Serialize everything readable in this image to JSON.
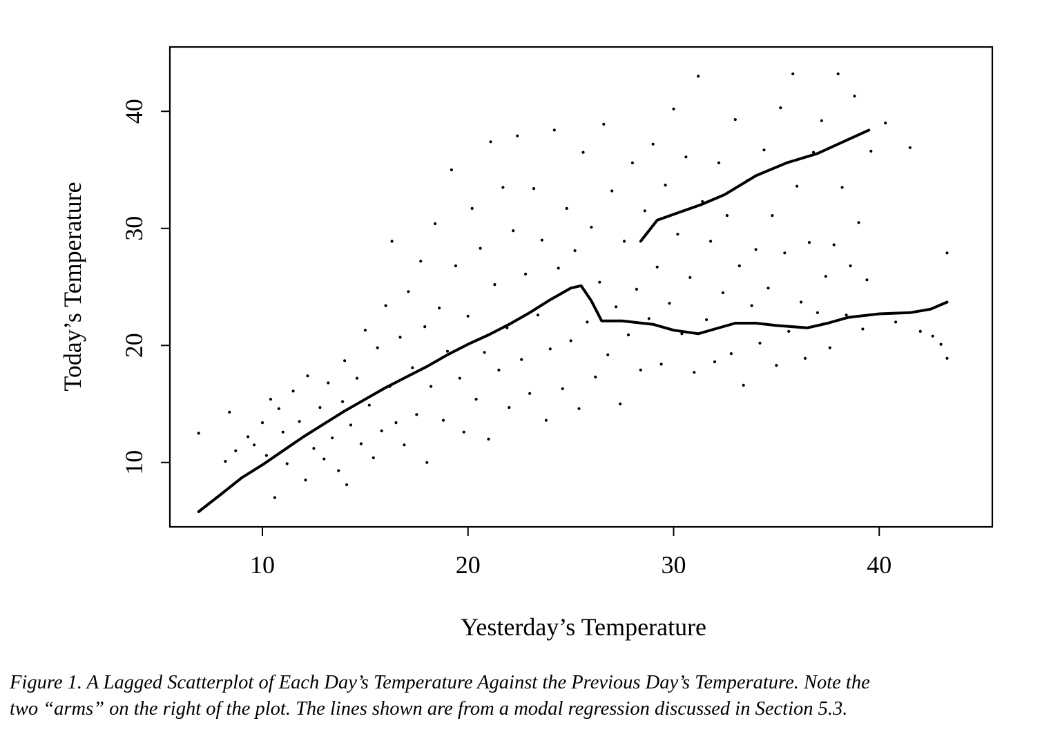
{
  "chart_data": {
    "type": "scatter",
    "title": "",
    "xlabel": "Yesterday’s Temperature",
    "ylabel": "Today’s Temperature",
    "xlim": [
      5.5,
      45.5
    ],
    "ylim": [
      4.5,
      45.5
    ],
    "x_ticks": [
      10,
      20,
      30,
      40
    ],
    "y_ticks": [
      10,
      20,
      30,
      40
    ],
    "grid": false,
    "legend": "none",
    "point_color": "#000000",
    "line_color": "#000000",
    "lines": [
      {
        "points": [
          [
            6.9,
            5.8
          ],
          [
            8,
            7.3
          ],
          [
            9,
            8.7
          ],
          [
            10,
            9.8
          ],
          [
            11,
            11
          ],
          [
            12,
            12.2
          ],
          [
            13,
            13.3
          ],
          [
            14,
            14.4
          ],
          [
            15,
            15.4
          ],
          [
            16,
            16.4
          ],
          [
            17,
            17.3
          ],
          [
            18,
            18.2
          ],
          [
            19,
            19.2
          ],
          [
            20,
            20.1
          ],
          [
            21,
            20.9
          ],
          [
            22,
            21.8
          ],
          [
            23,
            22.8
          ],
          [
            24,
            23.9
          ],
          [
            25,
            24.9
          ],
          [
            25.5,
            25.1
          ],
          [
            26,
            23.8
          ],
          [
            26.5,
            22.1
          ],
          [
            27.5,
            22.1
          ],
          [
            29,
            21.8
          ],
          [
            30,
            21.3
          ],
          [
            31.2,
            21
          ],
          [
            32,
            21.4
          ],
          [
            33,
            21.9
          ],
          [
            34,
            21.9
          ],
          [
            35,
            21.7
          ],
          [
            36.5,
            21.5
          ],
          [
            37.5,
            21.9
          ],
          [
            38.5,
            22.4
          ],
          [
            40,
            22.7
          ],
          [
            41.5,
            22.8
          ],
          [
            42.5,
            23.1
          ],
          [
            43.3,
            23.7
          ]
        ]
      },
      {
        "points": [
          [
            28.4,
            28.9
          ],
          [
            29.2,
            30.7
          ],
          [
            30,
            31.2
          ],
          [
            31.3,
            32
          ],
          [
            32.5,
            32.9
          ],
          [
            34,
            34.5
          ],
          [
            35.5,
            35.6
          ],
          [
            37,
            36.4
          ],
          [
            38,
            37.2
          ],
          [
            39.5,
            38.4
          ]
        ]
      }
    ],
    "points": [
      [
        6.9,
        12.5
      ],
      [
        8.2,
        10.1
      ],
      [
        8.4,
        14.3
      ],
      [
        8.7,
        11
      ],
      [
        9.3,
        12.2
      ],
      [
        9.6,
        11.5
      ],
      [
        10,
        13.4
      ],
      [
        10.2,
        10.6
      ],
      [
        10.4,
        15.4
      ],
      [
        10.6,
        7
      ],
      [
        10.8,
        14.6
      ],
      [
        11,
        12.6
      ],
      [
        11.2,
        9.9
      ],
      [
        11.5,
        16.1
      ],
      [
        11.8,
        13.5
      ],
      [
        12.1,
        8.5
      ],
      [
        12.2,
        17.4
      ],
      [
        12.5,
        11.2
      ],
      [
        12.8,
        14.7
      ],
      [
        13,
        10.3
      ],
      [
        13.2,
        16.8
      ],
      [
        13.4,
        12.1
      ],
      [
        13.7,
        9.3
      ],
      [
        13.9,
        15.2
      ],
      [
        14,
        18.7
      ],
      [
        14.1,
        8.1
      ],
      [
        14.3,
        13.2
      ],
      [
        14.6,
        17.2
      ],
      [
        14.8,
        11.6
      ],
      [
        15,
        21.3
      ],
      [
        15.2,
        14.9
      ],
      [
        15.4,
        10.4
      ],
      [
        15.6,
        19.8
      ],
      [
        15.8,
        12.7
      ],
      [
        16,
        23.4
      ],
      [
        16.2,
        16.5
      ],
      [
        16.3,
        28.9
      ],
      [
        16.5,
        13.4
      ],
      [
        16.7,
        20.7
      ],
      [
        16.9,
        11.5
      ],
      [
        17.1,
        24.6
      ],
      [
        17.3,
        18.1
      ],
      [
        17.5,
        14.1
      ],
      [
        17.7,
        27.2
      ],
      [
        17.9,
        21.6
      ],
      [
        18,
        10
      ],
      [
        18.2,
        16.5
      ],
      [
        18.4,
        30.4
      ],
      [
        18.6,
        23.2
      ],
      [
        18.8,
        13.6
      ],
      [
        19,
        19.5
      ],
      [
        19.2,
        35
      ],
      [
        19.4,
        26.8
      ],
      [
        19.6,
        17.2
      ],
      [
        19.8,
        12.6
      ],
      [
        20,
        22.5
      ],
      [
        20.2,
        31.7
      ],
      [
        20.4,
        15.4
      ],
      [
        20.6,
        28.3
      ],
      [
        20.8,
        19.4
      ],
      [
        21,
        12
      ],
      [
        21.1,
        37.4
      ],
      [
        21.3,
        25.2
      ],
      [
        21.5,
        17.9
      ],
      [
        21.7,
        33.5
      ],
      [
        21.9,
        21.5
      ],
      [
        22,
        14.7
      ],
      [
        22.2,
        29.8
      ],
      [
        22.4,
        37.9
      ],
      [
        22.6,
        18.8
      ],
      [
        22.8,
        26.1
      ],
      [
        23,
        15.9
      ],
      [
        23.2,
        33.4
      ],
      [
        23.4,
        22.6
      ],
      [
        23.6,
        29
      ],
      [
        23.8,
        13.6
      ],
      [
        24,
        19.7
      ],
      [
        24.2,
        38.4
      ],
      [
        24.4,
        26.6
      ],
      [
        24.6,
        16.3
      ],
      [
        24.8,
        31.7
      ],
      [
        25,
        20.4
      ],
      [
        25.2,
        28.1
      ],
      [
        25.4,
        14.6
      ],
      [
        25.6,
        36.5
      ],
      [
        25.8,
        22
      ],
      [
        26,
        30.1
      ],
      [
        26.2,
        17.3
      ],
      [
        26.4,
        25.4
      ],
      [
        26.6,
        38.9
      ],
      [
        26.8,
        19.2
      ],
      [
        27,
        33.2
      ],
      [
        27.2,
        23.3
      ],
      [
        27.4,
        15
      ],
      [
        27.6,
        28.9
      ],
      [
        27.8,
        20.9
      ],
      [
        28,
        35.6
      ],
      [
        28.2,
        24.8
      ],
      [
        28.4,
        17.9
      ],
      [
        28.6,
        31.5
      ],
      [
        28.8,
        22.3
      ],
      [
        29,
        37.2
      ],
      [
        29.2,
        26.7
      ],
      [
        29.4,
        18.4
      ],
      [
        29.6,
        33.7
      ],
      [
        29.8,
        23.6
      ],
      [
        30,
        40.2
      ],
      [
        30.2,
        29.5
      ],
      [
        30.4,
        21
      ],
      [
        30.6,
        36.1
      ],
      [
        30.8,
        25.8
      ],
      [
        31,
        17.7
      ],
      [
        31.2,
        43
      ],
      [
        31.4,
        32.3
      ],
      [
        31.6,
        22.2
      ],
      [
        31.8,
        28.9
      ],
      [
        32,
        18.6
      ],
      [
        32.2,
        35.6
      ],
      [
        32.4,
        24.5
      ],
      [
        32.6,
        31.1
      ],
      [
        32.8,
        19.3
      ],
      [
        33,
        39.3
      ],
      [
        33.2,
        26.8
      ],
      [
        33.4,
        16.6
      ],
      [
        33.6,
        34.1
      ],
      [
        33.8,
        23.4
      ],
      [
        34,
        28.2
      ],
      [
        34.2,
        20.2
      ],
      [
        34.4,
        36.7
      ],
      [
        34.6,
        24.9
      ],
      [
        34.8,
        31.1
      ],
      [
        35,
        18.3
      ],
      [
        35.2,
        40.3
      ],
      [
        35.4,
        27.9
      ],
      [
        35.6,
        21.2
      ],
      [
        35.8,
        43.2
      ],
      [
        36,
        33.6
      ],
      [
        36.2,
        23.7
      ],
      [
        36.4,
        18.9
      ],
      [
        36.6,
        28.8
      ],
      [
        36.8,
        36.5
      ],
      [
        37,
        22.8
      ],
      [
        37.2,
        39.2
      ],
      [
        37.4,
        25.9
      ],
      [
        37.6,
        19.8
      ],
      [
        37.8,
        28.6
      ],
      [
        38,
        43.2
      ],
      [
        38.2,
        33.5
      ],
      [
        38.4,
        22.6
      ],
      [
        38.6,
        26.8
      ],
      [
        38.8,
        41.3
      ],
      [
        39,
        30.5
      ],
      [
        39.2,
        21.4
      ],
      [
        39.4,
        25.6
      ],
      [
        39.6,
        36.6
      ],
      [
        40.3,
        39
      ],
      [
        40.8,
        22
      ],
      [
        41.5,
        36.9
      ],
      [
        42,
        21.2
      ],
      [
        42.6,
        20.8
      ],
      [
        43,
        20.1
      ],
      [
        43.3,
        27.9
      ],
      [
        43.3,
        18.9
      ]
    ]
  },
  "caption": {
    "line1": "Figure 1.  A Lagged Scatterplot of Each Day’s Temperature Against the Previous Day’s Temperature. Note the",
    "line2": "two “arms” on the right of the plot. The lines shown are from a modal regression discussed in Section 5.3."
  }
}
